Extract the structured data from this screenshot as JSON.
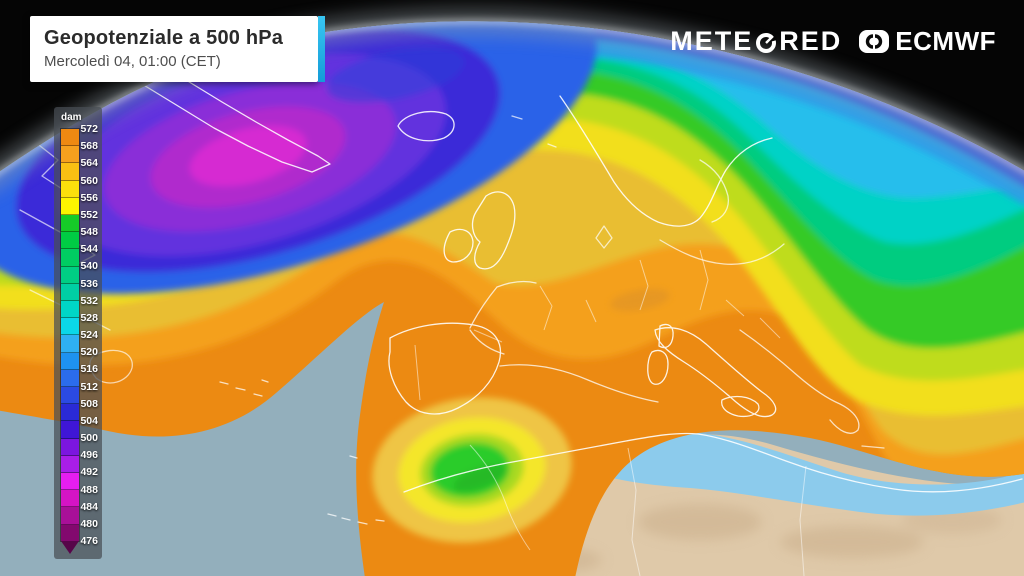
{
  "header": {
    "title": "Geopotenziale a 500 hPa",
    "subtitle": "Mercoledì 04, 01:00 (CET)",
    "accent_color": "#1FB4E8"
  },
  "branding": {
    "meteored_label": "METEORED",
    "meteored_pre": "METE",
    "meteored_post": "RED",
    "ecmwf_label": "ECMWF"
  },
  "legend": {
    "unit": "dam",
    "tick_values": [
      572,
      568,
      564,
      560,
      556,
      552,
      548,
      544,
      540,
      536,
      532,
      528,
      524,
      520,
      516,
      512,
      508,
      504,
      500,
      496,
      492,
      488,
      484,
      480,
      476
    ],
    "cell_colors": [
      "#EE8912",
      "#F5A01E",
      "#F9C013",
      "#FBDF0C",
      "#FDF400",
      "#16CB28",
      "#00CC44",
      "#00CD62",
      "#00CE84",
      "#00CFA4",
      "#00D6C6",
      "#0BD7E8",
      "#2FB0F2",
      "#1E92F0",
      "#2B6CEC",
      "#2B4AE2",
      "#2A2AD6",
      "#3F16D6",
      "#7B16DF",
      "#A81EE8",
      "#E61EF0",
      "#D414C4",
      "#A81098",
      "#82096E"
    ],
    "arrow_color": "#570549"
  },
  "map": {
    "colors": {
      "space": "#050505",
      "ocean": "#93AFBC",
      "desert": "#DFC9A9",
      "mediterranean": "#8CCBEC",
      "coastline": "#FFFFFF",
      "low_core": "#D62BD2",
      "outer_band": "#EC8A12",
      "cutoff_low_green": "#2ACC2A"
    }
  }
}
